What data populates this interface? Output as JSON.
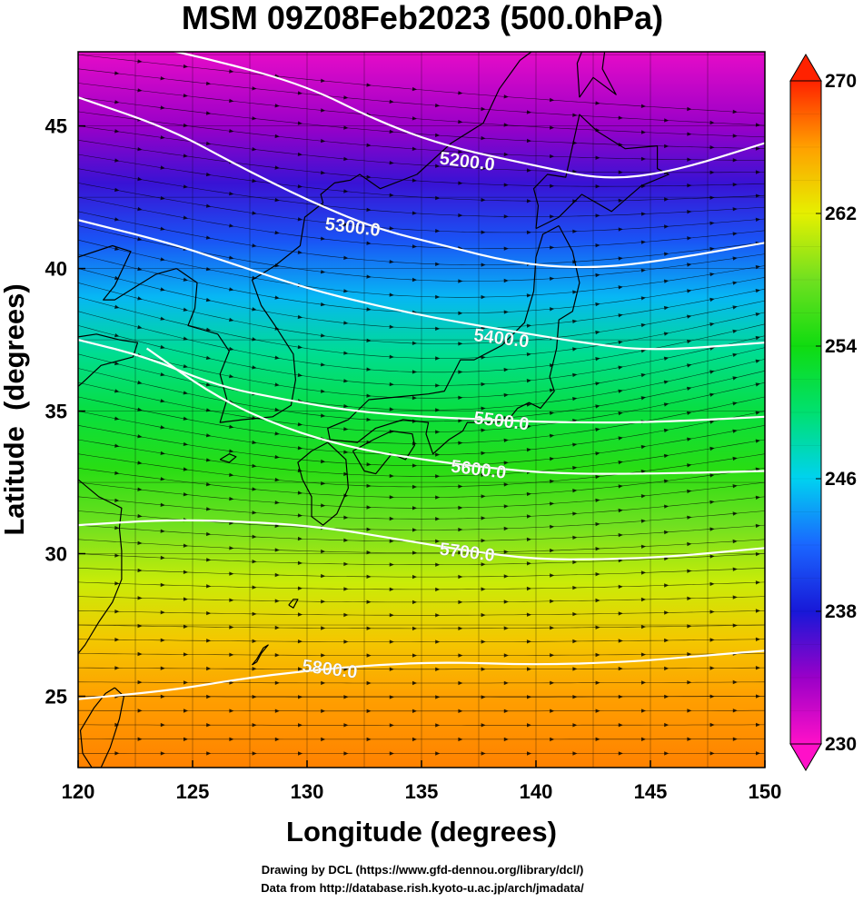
{
  "title": "MSM 09Z08Feb2023 (500.0hPa)",
  "credits": [
    "Drawing by DCL (https://www.gfd-dennou.org/library/dcl/)",
    "Data from http://database.rish.kyoto-u.ac.jp/arch/jmadata/"
  ],
  "chart_data": {
    "type": "heatmap",
    "xlabel": "Longitude (degrees)",
    "ylabel": "Latitude  (degrees)",
    "xlim": [
      120,
      150
    ],
    "ylim": [
      22.5,
      47.6
    ],
    "xticks": [
      120,
      125,
      130,
      135,
      140,
      145,
      150
    ],
    "yticks": [
      25,
      30,
      35,
      40,
      45
    ],
    "grid": true,
    "colorbar": {
      "min": 230,
      "max": 270,
      "ticks": [
        230,
        238,
        246,
        254,
        262,
        270
      ],
      "extend": "both"
    },
    "contours": [
      {
        "label": "5200.0",
        "points": [
          [
            122,
            48
          ],
          [
            126,
            47.3
          ],
          [
            130,
            46.4
          ],
          [
            133,
            45.2
          ],
          [
            136,
            44.3
          ],
          [
            140,
            43.6
          ],
          [
            143,
            43.1
          ],
          [
            146,
            43.4
          ],
          [
            150,
            44.4
          ]
        ],
        "label_at": [
          137,
          43.8
        ]
      },
      {
        "label": "5300.0",
        "points": [
          [
            120,
            46.0
          ],
          [
            124,
            44.9
          ],
          [
            127,
            43.6
          ],
          [
            130,
            42.4
          ],
          [
            133,
            41.4
          ],
          [
            136,
            40.8
          ],
          [
            139,
            40.2
          ],
          [
            142,
            40.0
          ],
          [
            145,
            40.2
          ],
          [
            150,
            40.9
          ]
        ],
        "label_at": [
          132,
          41.5
        ]
      },
      {
        "label": "5400.0",
        "points": [
          [
            120,
            41.7
          ],
          [
            124,
            40.9
          ],
          [
            127,
            40.1
          ],
          [
            130,
            39.3
          ],
          [
            133,
            38.7
          ],
          [
            136,
            38.2
          ],
          [
            139,
            37.8
          ],
          [
            142,
            37.4
          ],
          [
            145,
            37.1
          ],
          [
            150,
            37.4
          ]
        ],
        "label_at": [
          138.5,
          37.6
        ]
      },
      {
        "label": "5500.0",
        "points": [
          [
            120,
            37.5
          ],
          [
            123,
            36.9
          ],
          [
            126,
            35.9
          ],
          [
            129,
            35.4
          ],
          [
            132,
            35.0
          ],
          [
            135,
            34.8
          ],
          [
            138,
            34.7
          ],
          [
            141,
            34.6
          ],
          [
            145,
            34.6
          ],
          [
            150,
            34.8
          ]
        ],
        "label_at": [
          138.5,
          34.7
        ]
      },
      {
        "label": "5600.0",
        "points": [
          [
            123,
            37.2
          ],
          [
            126,
            35.5
          ],
          [
            129,
            34.4
          ],
          [
            132,
            33.7
          ],
          [
            135,
            33.3
          ],
          [
            138,
            33.0
          ],
          [
            141,
            32.8
          ],
          [
            145,
            32.8
          ],
          [
            150,
            32.9
          ]
        ],
        "label_at": [
          137.5,
          33.0
        ]
      },
      {
        "label": "5700.0",
        "points": [
          [
            120,
            31.0
          ],
          [
            124,
            31.2
          ],
          [
            128,
            31.1
          ],
          [
            131,
            30.9
          ],
          [
            134,
            30.5
          ],
          [
            137,
            30.1
          ],
          [
            140,
            29.8
          ],
          [
            143,
            29.8
          ],
          [
            146,
            29.9
          ],
          [
            150,
            30.2
          ]
        ],
        "label_at": [
          137,
          30.1
        ]
      },
      {
        "label": "5800.0",
        "points": [
          [
            120,
            24.9
          ],
          [
            124,
            25.2
          ],
          [
            127,
            25.6
          ],
          [
            130,
            25.9
          ],
          [
            133,
            26.1
          ],
          [
            136,
            26.2
          ],
          [
            140,
            26.1
          ],
          [
            144,
            26.2
          ],
          [
            147,
            26.4
          ],
          [
            150,
            26.6
          ]
        ],
        "label_at": [
          131,
          26.0
        ]
      }
    ],
    "temperature_bands": [
      {
        "lat": 47.6,
        "value": 231
      },
      {
        "lat": 45.0,
        "value": 234
      },
      {
        "lat": 43.0,
        "value": 237
      },
      {
        "lat": 41.0,
        "value": 241
      },
      {
        "lat": 39.0,
        "value": 245
      },
      {
        "lat": 37.0,
        "value": 249
      },
      {
        "lat": 35.0,
        "value": 252
      },
      {
        "lat": 33.0,
        "value": 255
      },
      {
        "lat": 31.0,
        "value": 258
      },
      {
        "lat": 29.0,
        "value": 261
      },
      {
        "lat": 27.0,
        "value": 264
      },
      {
        "lat": 25.0,
        "value": 266
      },
      {
        "lat": 22.5,
        "value": 267
      }
    ],
    "coastlines": [
      {
        "name": "hokkaido",
        "points": [
          [
            140.0,
            41.4
          ],
          [
            140.1,
            42.2
          ],
          [
            139.9,
            42.8
          ],
          [
            140.5,
            43.3
          ],
          [
            141.3,
            43.2
          ],
          [
            141.6,
            44.3
          ],
          [
            141.9,
            45.4
          ],
          [
            142.7,
            44.8
          ],
          [
            143.9,
            44.2
          ],
          [
            145.3,
            44.3
          ],
          [
            145.3,
            43.5
          ],
          [
            145.8,
            43.3
          ],
          [
            144.6,
            42.9
          ],
          [
            143.3,
            42.0
          ],
          [
            142.0,
            42.6
          ],
          [
            141.0,
            41.8
          ],
          [
            140.0,
            41.4
          ]
        ]
      },
      {
        "name": "honshu",
        "points": [
          [
            141.0,
            41.5
          ],
          [
            141.6,
            40.6
          ],
          [
            141.9,
            39.5
          ],
          [
            141.6,
            38.5
          ],
          [
            141.0,
            38.2
          ],
          [
            140.9,
            37.2
          ],
          [
            140.6,
            36.2
          ],
          [
            140.8,
            35.7
          ],
          [
            140.2,
            35.1
          ],
          [
            139.7,
            35.3
          ],
          [
            139.2,
            35.1
          ],
          [
            138.8,
            34.7
          ],
          [
            138.2,
            34.6
          ],
          [
            137.0,
            34.6
          ],
          [
            136.8,
            34.3
          ],
          [
            136.2,
            34.0
          ],
          [
            135.5,
            33.5
          ],
          [
            135.2,
            34.2
          ],
          [
            135.3,
            34.6
          ],
          [
            134.2,
            34.7
          ],
          [
            133.0,
            34.4
          ],
          [
            132.2,
            33.9
          ],
          [
            131.0,
            34.0
          ],
          [
            130.9,
            34.4
          ],
          [
            131.8,
            34.7
          ],
          [
            132.7,
            35.4
          ],
          [
            134.0,
            35.5
          ],
          [
            135.3,
            35.6
          ],
          [
            136.0,
            35.7
          ],
          [
            136.7,
            36.8
          ],
          [
            137.3,
            36.8
          ],
          [
            138.5,
            37.3
          ],
          [
            139.5,
            38.1
          ],
          [
            139.9,
            39.2
          ],
          [
            140.0,
            40.4
          ],
          [
            140.3,
            41.2
          ],
          [
            141.0,
            41.5
          ]
        ]
      },
      {
        "name": "kyushu",
        "points": [
          [
            130.9,
            33.9
          ],
          [
            131.7,
            33.3
          ],
          [
            131.8,
            32.3
          ],
          [
            131.3,
            31.4
          ],
          [
            130.7,
            31.0
          ],
          [
            130.2,
            31.3
          ],
          [
            130.2,
            32.0
          ],
          [
            129.8,
            32.6
          ],
          [
            129.6,
            33.2
          ],
          [
            130.2,
            33.6
          ],
          [
            130.9,
            33.9
          ]
        ]
      },
      {
        "name": "shikoku",
        "points": [
          [
            132.0,
            33.6
          ],
          [
            132.5,
            32.9
          ],
          [
            133.0,
            32.8
          ],
          [
            133.7,
            33.5
          ],
          [
            134.3,
            33.3
          ],
          [
            134.7,
            33.8
          ],
          [
            134.6,
            34.2
          ],
          [
            133.7,
            34.3
          ],
          [
            132.9,
            34.0
          ],
          [
            132.0,
            33.6
          ]
        ]
      },
      {
        "name": "sakhalin",
        "points": [
          [
            141.9,
            46.0
          ],
          [
            141.8,
            47.2
          ],
          [
            142.0,
            47.6
          ],
          [
            143.0,
            47.6
          ],
          [
            142.9,
            47.0
          ],
          [
            143.5,
            46.1
          ],
          [
            142.5,
            46.7
          ],
          [
            141.9,
            46.0
          ]
        ]
      },
      {
        "name": "korea",
        "points": [
          [
            124.3,
            40.0
          ],
          [
            125.2,
            39.5
          ],
          [
            125.1,
            38.6
          ],
          [
            124.8,
            38.0
          ],
          [
            126.1,
            37.7
          ],
          [
            126.6,
            37.1
          ],
          [
            126.2,
            36.3
          ],
          [
            126.5,
            35.4
          ],
          [
            126.2,
            34.6
          ],
          [
            127.2,
            34.7
          ],
          [
            128.5,
            34.8
          ],
          [
            129.3,
            35.2
          ],
          [
            129.5,
            36.1
          ],
          [
            129.4,
            37.0
          ],
          [
            128.6,
            38.0
          ],
          [
            128.0,
            38.7
          ],
          [
            127.6,
            39.6
          ],
          [
            128.6,
            40.1
          ],
          [
            129.7,
            40.8
          ],
          [
            129.9,
            41.8
          ],
          [
            130.7,
            42.3
          ],
          [
            130.6,
            42.6
          ],
          [
            131.2,
            43.0
          ],
          [
            131.9,
            43.1
          ],
          [
            132.3,
            43.3
          ],
          [
            133.2,
            42.8
          ],
          [
            134.8,
            43.3
          ],
          [
            136.3,
            44.4
          ],
          [
            137.7,
            45.1
          ],
          [
            138.4,
            46.3
          ],
          [
            139.3,
            47.3
          ],
          [
            139.8,
            47.6
          ]
        ]
      },
      {
        "name": "china_coast",
        "points": [
          [
            120.0,
            40.4
          ],
          [
            121.5,
            40.8
          ],
          [
            122.3,
            40.6
          ],
          [
            121.6,
            39.4
          ],
          [
            121.1,
            38.9
          ],
          [
            121.6,
            38.9
          ],
          [
            122.6,
            39.4
          ],
          [
            123.4,
            39.8
          ],
          [
            124.3,
            40.0
          ]
        ]
      },
      {
        "name": "shandong",
        "points": [
          [
            120.0,
            37.6
          ],
          [
            120.8,
            37.7
          ],
          [
            121.8,
            37.5
          ],
          [
            122.6,
            37.4
          ],
          [
            122.4,
            36.9
          ],
          [
            121.0,
            36.6
          ],
          [
            120.2,
            36.0
          ],
          [
            119.6,
            35.6
          ]
        ]
      },
      {
        "name": "east_china",
        "points": [
          [
            120.0,
            32.6
          ],
          [
            120.9,
            32.0
          ],
          [
            121.9,
            31.6
          ],
          [
            121.8,
            30.9
          ],
          [
            121.9,
            30.1
          ],
          [
            121.9,
            29.1
          ],
          [
            121.5,
            28.3
          ],
          [
            120.9,
            27.6
          ],
          [
            120.3,
            26.8
          ],
          [
            119.8,
            26.3
          ]
        ]
      },
      {
        "name": "taiwan",
        "points": [
          [
            121.6,
            25.3
          ],
          [
            122.0,
            25.0
          ],
          [
            121.8,
            24.2
          ],
          [
            121.4,
            23.2
          ],
          [
            121.0,
            22.5
          ],
          [
            120.6,
            22.5
          ],
          [
            120.2,
            23.0
          ],
          [
            120.1,
            23.8
          ],
          [
            120.7,
            24.6
          ],
          [
            121.2,
            25.1
          ],
          [
            121.6,
            25.3
          ]
        ]
      },
      {
        "name": "jeju",
        "points": [
          [
            126.2,
            33.3
          ],
          [
            126.6,
            33.5
          ],
          [
            126.9,
            33.4
          ],
          [
            126.6,
            33.2
          ],
          [
            126.2,
            33.3
          ]
        ]
      },
      {
        "name": "okinawa",
        "points": [
          [
            127.6,
            26.1
          ],
          [
            127.8,
            26.3
          ],
          [
            128.1,
            26.7
          ],
          [
            128.3,
            26.8
          ],
          [
            128.0,
            26.5
          ],
          [
            127.8,
            26.2
          ],
          [
            127.6,
            26.1
          ]
        ]
      },
      {
        "name": "amami",
        "points": [
          [
            129.2,
            28.2
          ],
          [
            129.4,
            28.4
          ],
          [
            129.6,
            28.4
          ],
          [
            129.4,
            28.1
          ],
          [
            129.2,
            28.2
          ]
        ]
      }
    ]
  }
}
